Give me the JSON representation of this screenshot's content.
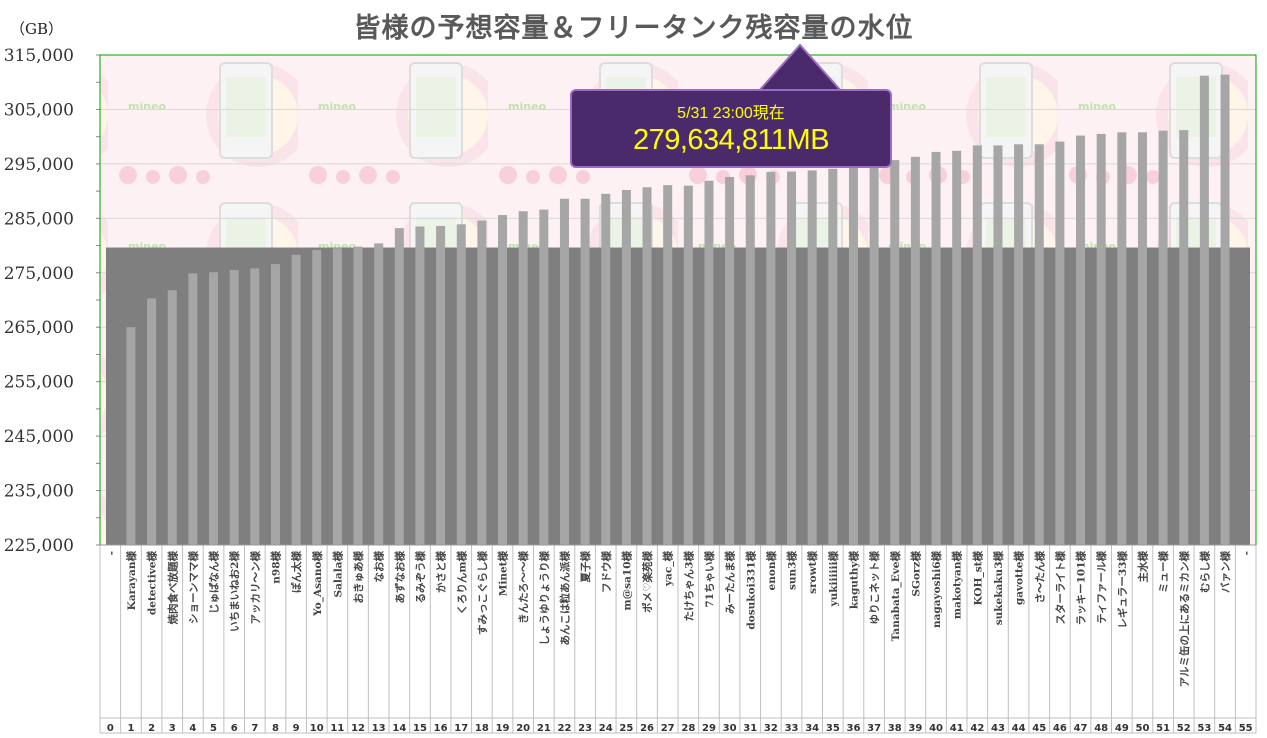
{
  "chart_data": {
    "type": "bar",
    "title": "皆様の予想容量＆フリータンク残容量の水位",
    "unit_label": "（GB）",
    "ylim": [
      225000,
      315000
    ],
    "y_ticks": [
      "225,000",
      "235,000",
      "245,000",
      "255,000",
      "265,000",
      "275,000",
      "285,000",
      "295,000",
      "305,000",
      "315,000"
    ],
    "grid": true,
    "indices": [
      "0",
      "1",
      "2",
      "3",
      "4",
      "5",
      "6",
      "7",
      "8",
      "9",
      "10",
      "11",
      "12",
      "13",
      "14",
      "15",
      "16",
      "17",
      "18",
      "19",
      "20",
      "21",
      "22",
      "23",
      "24",
      "25",
      "26",
      "27",
      "28",
      "29",
      "30",
      "31",
      "32",
      "33",
      "34",
      "35",
      "36",
      "37",
      "38",
      "39",
      "40",
      "41",
      "42",
      "43",
      "44",
      "45",
      "46",
      "47",
      "48",
      "49",
      "50",
      "51",
      "52",
      "53",
      "54",
      "55"
    ],
    "categories": [
      "-",
      "Karayan様",
      "detective様",
      "焼肉食べ放題様",
      "ショーンママ様",
      "じゅばなん様",
      "いちまいねお2様",
      "アッカリ〜ン様",
      "n98様",
      "ぽん太様",
      "Yo_Asano様",
      "Salala様",
      "おきゅあ様",
      "なお様",
      "あずなお様",
      "るみぞう様",
      "かさと様",
      "くろりんm様",
      "すみっこぐらし様",
      "Minet様",
      "きんたろ〜〜様",
      "しょうゆりょうり様",
      "あんこは粒あん派様",
      "夏子様",
      "フドウ様",
      "m@sa10様",
      "ポメ♡楽苑様",
      "yac_様",
      "たけちゃん3様",
      "71ちゃい様",
      "みーたんま様",
      "dosukoi331様",
      "enon様",
      "sun3様",
      "srowt様",
      "yukiiiiii様",
      "kaguthy様",
      "ゆりこネット様",
      "Tanabata_Eve様",
      "SGorz様",
      "nagayoshi6様",
      "makotyan様",
      "KOH_st様",
      "sukekaku3様",
      "gavotte様",
      "さ〜たん様",
      "スターライト様",
      "ラッキー101様",
      "ティファール様",
      "レギュラー33様",
      "主水様",
      "ミュー様",
      "アルミ缶の上にあるミカン様",
      "むらし様",
      "バァン様",
      "-"
    ],
    "values": [
      null,
      265000,
      270300,
      271800,
      274900,
      275100,
      275500,
      275800,
      276600,
      278300,
      279200,
      279500,
      279800,
      280400,
      283200,
      283500,
      283600,
      283900,
      284600,
      285600,
      286300,
      286600,
      288600,
      288600,
      289500,
      290200,
      290700,
      291100,
      291000,
      291900,
      292600,
      292900,
      293500,
      293600,
      293800,
      294100,
      294300,
      295300,
      295700,
      296300,
      297200,
      297400,
      298400,
      298400,
      298600,
      298600,
      299100,
      300200,
      300500,
      300800,
      300800,
      301100,
      301200,
      311200,
      311400,
      null
    ],
    "series": [
      {
        "name": "",
        "values_note": ""
      }
    ],
    "reference_level": 279634.811,
    "callout": {
      "date_text": "5/31 23:00現在",
      "value_text": "279,634,811MB"
    },
    "colors": {
      "bar": "#a6a6a6",
      "water": "#7f7f7f",
      "callout_bg": "#4b2a6b",
      "callout_text": "#ffff00",
      "plot_border": "#00a000"
    }
  }
}
